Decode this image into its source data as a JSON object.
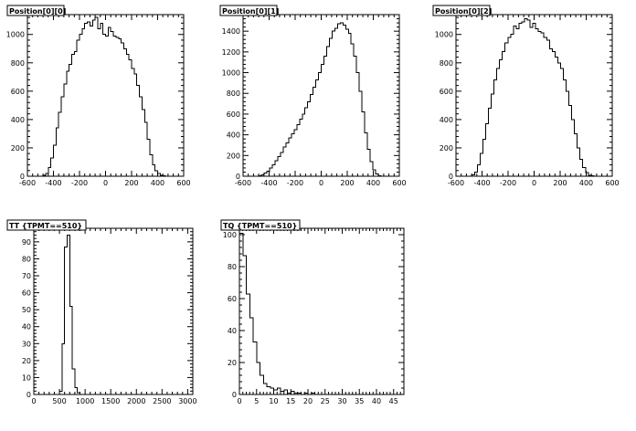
{
  "chart_data": [
    {
      "type": "histogram",
      "title": "Position[0][0]",
      "xlim": [
        -600,
        600
      ],
      "ylim": [
        0,
        1140
      ],
      "x_ticks": [
        -600,
        -400,
        -200,
        0,
        200,
        400,
        600
      ],
      "x_tick_labels": [
        "-600",
        "-400",
        "-200",
        "0",
        "200",
        "400",
        "600"
      ],
      "y_ticks": [
        0,
        200,
        400,
        600,
        800,
        1000
      ],
      "y_tick_labels": [
        "0",
        "200",
        "400",
        "600",
        "800",
        "1000"
      ],
      "bin_edges": [
        -500,
        480
      ],
      "values": [
        0,
        5,
        20,
        60,
        130,
        220,
        340,
        450,
        560,
        650,
        740,
        790,
        860,
        880,
        960,
        1000,
        1040,
        1080,
        1090,
        1060,
        1100,
        1120,
        1040,
        1080,
        1000,
        990,
        1050,
        1020,
        990,
        980,
        970,
        940,
        900,
        860,
        820,
        760,
        720,
        640,
        560,
        470,
        380,
        260,
        150,
        80,
        40,
        20,
        8,
        2,
        0
      ]
    },
    {
      "type": "histogram",
      "title": "Position[0][1]",
      "xlim": [
        -600,
        600
      ],
      "ylim": [
        0,
        1560
      ],
      "x_ticks": [
        -600,
        -400,
        -200,
        0,
        200,
        400,
        600
      ],
      "x_tick_labels": [
        "-600",
        "-400",
        "-200",
        "0",
        "200",
        "400",
        "600"
      ],
      "y_ticks": [
        0,
        200,
        400,
        600,
        800,
        1000,
        1200,
        1400
      ],
      "y_tick_labels": [
        "0",
        "200",
        "400",
        "600",
        "800",
        "1000",
        "1200",
        "1400"
      ],
      "bin_edges": [
        -500,
        480
      ],
      "values": [
        0,
        5,
        15,
        30,
        50,
        80,
        110,
        150,
        190,
        230,
        280,
        320,
        370,
        410,
        450,
        500,
        550,
        600,
        660,
        720,
        790,
        860,
        930,
        1000,
        1080,
        1160,
        1250,
        1330,
        1400,
        1430,
        1470,
        1480,
        1460,
        1420,
        1380,
        1280,
        1160,
        1000,
        820,
        620,
        420,
        260,
        140,
        60,
        20,
        5,
        0
      ]
    },
    {
      "type": "histogram",
      "title": "Position[0][2]",
      "xlim": [
        -600,
        600
      ],
      "ylim": [
        0,
        1140
      ],
      "x_ticks": [
        -600,
        -400,
        -200,
        0,
        200,
        400,
        600
      ],
      "x_tick_labels": [
        "-600",
        "-400",
        "-200",
        "0",
        "200",
        "400",
        "600"
      ],
      "y_ticks": [
        0,
        200,
        400,
        600,
        800,
        1000
      ],
      "y_tick_labels": [
        "0",
        "200",
        "400",
        "600",
        "800",
        "1000"
      ],
      "bin_edges": [
        -500,
        480
      ],
      "values": [
        0,
        10,
        30,
        80,
        160,
        260,
        370,
        480,
        580,
        680,
        760,
        820,
        880,
        940,
        980,
        1000,
        1060,
        1040,
        1080,
        1090,
        1110,
        1100,
        1050,
        1080,
        1040,
        1020,
        1010,
        980,
        960,
        900,
        880,
        840,
        800,
        760,
        680,
        600,
        500,
        400,
        300,
        200,
        120,
        60,
        25,
        8,
        2,
        0
      ]
    },
    {
      "type": "histogram",
      "title": "TT {TPMT==510}",
      "xlim": [
        0,
        3100
      ],
      "ylim": [
        0,
        98
      ],
      "x_ticks": [
        0,
        500,
        1000,
        1500,
        2000,
        2500,
        3000
      ],
      "x_tick_labels": [
        "0",
        "500",
        "1000",
        "1500",
        "2000",
        "2500",
        "3000"
      ],
      "y_ticks": [
        0,
        10,
        20,
        30,
        40,
        50,
        60,
        70,
        80,
        90
      ],
      "y_tick_labels": [
        "0",
        "10",
        "20",
        "30",
        "40",
        "50",
        "60",
        "70",
        "80",
        "90"
      ],
      "bin_edges": [
        300,
        1000
      ],
      "values": [
        0,
        0,
        0,
        0,
        2,
        30,
        87,
        94,
        52,
        15,
        4,
        1,
        0,
        0
      ]
    },
    {
      "type": "histogram",
      "title": "TQ {TPMT==510}",
      "xlim": [
        0,
        48
      ],
      "ylim": [
        0,
        104
      ],
      "x_ticks": [
        0,
        5,
        10,
        15,
        20,
        25,
        30,
        35,
        40,
        45
      ],
      "x_tick_labels": [
        "0",
        "5",
        "10",
        "15",
        "20",
        "25",
        "30",
        "35",
        "40",
        "45"
      ],
      "y_ticks": [
        0,
        20,
        40,
        60,
        80,
        100
      ],
      "y_tick_labels": [
        "0",
        "20",
        "40",
        "60",
        "80",
        "100"
      ],
      "bin_edges": [
        0,
        24
      ],
      "values": [
        101,
        87,
        63,
        48,
        33,
        20,
        12,
        7,
        5,
        4,
        3,
        4,
        2,
        3,
        1,
        2,
        1,
        1,
        0,
        1,
        0,
        1,
        0,
        0
      ]
    }
  ]
}
